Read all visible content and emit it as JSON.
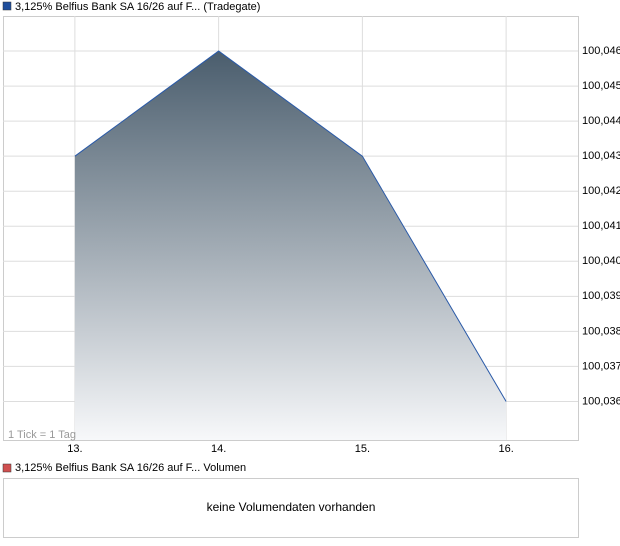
{
  "chart_data": {
    "type": "area",
    "title": "3,125% Belfius Bank SA 16/26 auf F... (Tradegate)",
    "legend_color": "#1f4e9c",
    "categories": [
      "13.",
      "14.",
      "15.",
      "16."
    ],
    "values": [
      100.043,
      100.046,
      100.043,
      100.036
    ],
    "color": "#2a5aa8",
    "ylim": [
      100.0349,
      100.047
    ],
    "yticks": [
      {
        "value": 100.036,
        "label": "100,036"
      },
      {
        "value": 100.037,
        "label": "100,037"
      },
      {
        "value": 100.038,
        "label": "100,038"
      },
      {
        "value": 100.039,
        "label": "100,039"
      },
      {
        "value": 100.04,
        "label": "100,040"
      },
      {
        "value": 100.041,
        "label": "100,041"
      },
      {
        "value": 100.042,
        "label": "100,042"
      },
      {
        "value": 100.043,
        "label": "100,043"
      },
      {
        "value": 100.044,
        "label": "100,044"
      },
      {
        "value": 100.045,
        "label": "100,045"
      },
      {
        "value": 100.046,
        "label": "100,046"
      }
    ],
    "grid": true,
    "annotation": "1 Tick = 1 Tag",
    "volume": {
      "title": "3,125% Belfius Bank SA 16/26 auf F... Volumen",
      "legend_color": "#d05050",
      "message": "keine Volumendaten vorhanden"
    }
  }
}
